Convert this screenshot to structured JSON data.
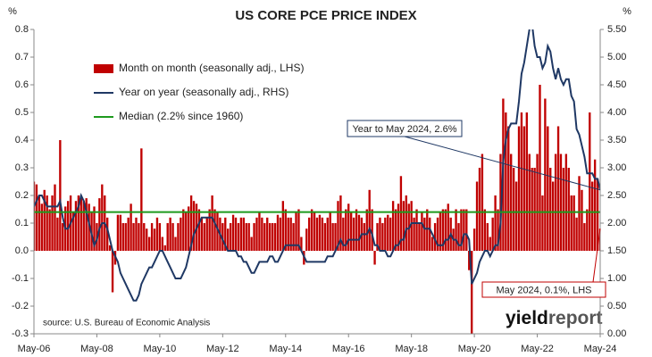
{
  "chart_data": {
    "type": "combo",
    "title": "US CORE PCE PRICE INDEX",
    "ylabel": "%",
    "y2label": "%",
    "source": "source: U.S. Bureau of Economic Analysis",
    "logo": [
      "yield",
      "report"
    ],
    "categories": [
      "May-06",
      null,
      null,
      null,
      null,
      null,
      null,
      null,
      null,
      null,
      null,
      null,
      null,
      null,
      null,
      null,
      null,
      null,
      null,
      null,
      null,
      null,
      null,
      null,
      "May-08",
      null,
      null,
      null,
      null,
      null,
      null,
      null,
      null,
      null,
      null,
      null,
      null,
      null,
      null,
      null,
      null,
      null,
      null,
      null,
      null,
      null,
      null,
      null,
      "May-10",
      null,
      null,
      null,
      null,
      null,
      null,
      null,
      null,
      null,
      null,
      null,
      null,
      null,
      null,
      null,
      null,
      null,
      null,
      null,
      null,
      null,
      null,
      null,
      "May-12",
      null,
      null,
      null,
      null,
      null,
      null,
      null,
      null,
      null,
      null,
      null,
      null,
      null,
      null,
      null,
      null,
      null,
      null,
      null,
      null,
      null,
      null,
      null,
      "May-14",
      null,
      null,
      null,
      null,
      null,
      null,
      null,
      null,
      null,
      null,
      null,
      null,
      null,
      null,
      null,
      null,
      null,
      null,
      null,
      null,
      null,
      null,
      null,
      "May-16",
      null,
      null,
      null,
      null,
      null,
      null,
      null,
      null,
      null,
      null,
      null,
      null,
      null,
      null,
      null,
      null,
      null,
      null,
      null,
      null,
      null,
      null,
      null,
      "May-18",
      null,
      null,
      null,
      null,
      null,
      null,
      null,
      null,
      null,
      null,
      null,
      null,
      null,
      null,
      null,
      null,
      null,
      null,
      null,
      null,
      null,
      null,
      null,
      "May-20",
      null,
      null,
      null,
      null,
      null,
      null,
      null,
      null,
      null,
      null,
      null,
      null,
      null,
      null,
      null,
      null,
      null,
      null,
      null,
      null,
      null,
      null,
      null,
      "May-22",
      null,
      null,
      null,
      null,
      null,
      null,
      null,
      null,
      null,
      null,
      null,
      null,
      null,
      null,
      null,
      null,
      null,
      null,
      null,
      null,
      null,
      null,
      null,
      "May-24"
    ],
    "series": [
      {
        "name": "Month on month (seasonally adj., LHS)",
        "type": "bar",
        "color": "#c00000",
        "values": [
          0.25,
          0.24,
          0.2,
          0.17,
          0.22,
          0.2,
          0.15,
          0.2,
          0.24,
          0.12,
          0.4,
          0.1,
          0.16,
          0.18,
          0.2,
          0.14,
          0.18,
          0.2,
          0.2,
          0.18,
          0.19,
          0.17,
          0.14,
          0.16,
          0.1,
          0.19,
          0.24,
          0.2,
          0.12,
          0.02,
          -0.15,
          -0.05,
          0.13,
          0.13,
          0.1,
          0.1,
          0.12,
          0.17,
          0.1,
          0.12,
          0.1,
          0.37,
          0.1,
          0.08,
          0.05,
          0.1,
          0.08,
          0.12,
          0.1,
          0.05,
          0.02,
          0.1,
          0.12,
          0.1,
          0.05,
          0.1,
          0.12,
          0.15,
          0.14,
          0.16,
          0.2,
          0.18,
          0.17,
          0.15,
          0.12,
          0.1,
          0.12,
          0.15,
          0.2,
          0.15,
          0.14,
          0.12,
          0.1,
          0.12,
          0.08,
          0.1,
          0.13,
          0.12,
          0.1,
          0.12,
          0.12,
          0.1,
          0.1,
          0.05,
          0.1,
          0.12,
          0.14,
          0.12,
          0.1,
          0.12,
          0.1,
          0.1,
          0.1,
          0.13,
          0.12,
          0.18,
          0.15,
          0.12,
          0.12,
          0.1,
          0.14,
          0.15,
          0.05,
          -0.05,
          0.08,
          0.12,
          0.15,
          0.14,
          0.12,
          0.13,
          0.12,
          0.1,
          0.12,
          0.14,
          0.1,
          0.1,
          0.18,
          0.2,
          0.12,
          0.15,
          0.17,
          0.14,
          0.12,
          0.15,
          0.13,
          0.12,
          0.1,
          0.15,
          0.22,
          0.15,
          -0.05,
          0.1,
          0.12,
          0.1,
          0.12,
          0.13,
          0.12,
          0.18,
          0.15,
          0.17,
          0.27,
          0.18,
          0.2,
          0.17,
          0.18,
          0.12,
          0.15,
          0.1,
          0.14,
          0.12,
          0.15,
          0.12,
          0.05,
          0.1,
          0.12,
          0.14,
          0.15,
          0.15,
          0.17,
          0.12,
          0.08,
          0.15,
          0.1,
          0.15,
          0.15,
          0.15,
          -0.07,
          -0.34,
          0.08,
          0.25,
          0.3,
          0.35,
          0.15,
          0.1,
          0.05,
          0.12,
          0.2,
          0.15,
          0.35,
          0.55,
          0.5,
          0.45,
          0.35,
          0.3,
          0.25,
          0.45,
          0.5,
          0.45,
          0.5,
          0.35,
          0.3,
          0.3,
          0.35,
          0.6,
          0.2,
          0.55,
          0.45,
          0.3,
          0.25,
          0.35,
          0.45,
          0.35,
          0.3,
          0.35,
          0.3,
          0.2,
          0.2,
          0.12,
          0.27,
          0.22,
          0.1,
          0.15,
          0.5,
          0.25,
          0.33,
          0.26,
          0.08
        ]
      },
      {
        "name": "Year on year (seasonally adj., RHS)",
        "type": "line",
        "axis": "y2",
        "color": "#1f3864",
        "values": [
          2.3,
          2.4,
          2.5,
          2.5,
          2.4,
          2.3,
          2.3,
          2.3,
          2.3,
          2.3,
          2.4,
          2.1,
          1.9,
          1.9,
          2.0,
          2.1,
          2.2,
          2.3,
          2.5,
          2.4,
          2.2,
          2.0,
          1.8,
          1.6,
          1.7,
          1.9,
          2.0,
          2.0,
          1.9,
          1.7,
          1.5,
          1.4,
          1.3,
          1.1,
          1.0,
          0.9,
          0.8,
          0.7,
          0.6,
          0.6,
          0.7,
          0.9,
          1.0,
          1.1,
          1.2,
          1.2,
          1.3,
          1.4,
          1.5,
          1.5,
          1.4,
          1.3,
          1.2,
          1.1,
          1.0,
          1.0,
          1.0,
          1.1,
          1.2,
          1.4,
          1.6,
          1.8,
          1.9,
          2.0,
          2.1,
          2.1,
          2.1,
          2.1,
          2.1,
          2.0,
          1.9,
          1.8,
          1.7,
          1.6,
          1.5,
          1.5,
          1.5,
          1.5,
          1.4,
          1.4,
          1.3,
          1.3,
          1.2,
          1.1,
          1.1,
          1.2,
          1.3,
          1.3,
          1.3,
          1.3,
          1.4,
          1.4,
          1.3,
          1.3,
          1.4,
          1.5,
          1.6,
          1.6,
          1.6,
          1.6,
          1.6,
          1.6,
          1.5,
          1.4,
          1.3,
          1.3,
          1.3,
          1.3,
          1.3,
          1.3,
          1.3,
          1.3,
          1.4,
          1.4,
          1.4,
          1.5,
          1.6,
          1.7,
          1.6,
          1.6,
          1.7,
          1.7,
          1.7,
          1.7,
          1.7,
          1.8,
          1.8,
          1.8,
          1.9,
          1.8,
          1.6,
          1.6,
          1.5,
          1.5,
          1.5,
          1.4,
          1.4,
          1.5,
          1.6,
          1.6,
          1.7,
          1.7,
          1.9,
          1.9,
          2.0,
          2.0,
          2.0,
          2.0,
          2.0,
          1.9,
          1.9,
          1.9,
          1.8,
          1.7,
          1.6,
          1.6,
          1.6,
          1.7,
          1.7,
          1.8,
          1.7,
          1.7,
          1.6,
          1.6,
          1.8,
          1.8,
          1.7,
          0.9,
          1.0,
          1.1,
          1.3,
          1.4,
          1.5,
          1.5,
          1.4,
          1.5,
          1.6,
          1.6,
          2.0,
          3.1,
          3.5,
          3.7,
          3.8,
          3.8,
          3.8,
          4.2,
          4.7,
          4.9,
          5.2,
          5.5,
          5.6,
          5.2,
          5.0,
          5.0,
          4.8,
          4.9,
          5.2,
          5.1,
          4.8,
          4.6,
          4.8,
          4.6,
          4.5,
          4.6,
          4.6,
          4.3,
          4.2,
          3.7,
          3.6,
          3.4,
          3.2,
          2.9,
          2.9,
          2.9,
          2.8,
          2.8,
          2.6
        ]
      },
      {
        "name": "Median (2.2% since 1960)",
        "type": "hline",
        "axis": "y2",
        "color": "#1e9a1e",
        "value": 2.2
      }
    ],
    "ylim": [
      -0.3,
      0.8
    ],
    "yticks": [
      -0.3,
      -0.2,
      -0.1,
      {
        "value": 0,
        "label": "0.0"
      },
      0.1,
      0.2,
      0.3,
      0.4,
      0.5,
      0.6,
      0.7,
      0.8
    ],
    "y2lim": [
      0,
      5.5
    ],
    "y2ticks": [
      {
        "value": 0,
        "label": "0.00"
      },
      {
        "value": 0.5,
        "label": "0.50"
      },
      {
        "value": 1,
        "label": "1.00"
      },
      {
        "value": 1.5,
        "label": "1.50"
      },
      {
        "value": 2,
        "label": "2.00"
      },
      {
        "value": 2.5,
        "label": "2.50"
      },
      {
        "value": 3,
        "label": "3.00"
      },
      {
        "value": 3.5,
        "label": "3.50"
      },
      {
        "value": 4,
        "label": "4.00"
      },
      {
        "value": 4.5,
        "label": "4.50"
      },
      {
        "value": 5,
        "label": "5.00"
      },
      {
        "value": 5.5,
        "label": "5.50"
      }
    ],
    "annotations": [
      {
        "text": "Year to May 2024, 2.6%",
        "series": 1,
        "color": "#1f3864"
      },
      {
        "text": "May 2024, 0.1%, LHS",
        "series": 0,
        "color": "#c00000"
      }
    ],
    "legend": "upper left"
  }
}
